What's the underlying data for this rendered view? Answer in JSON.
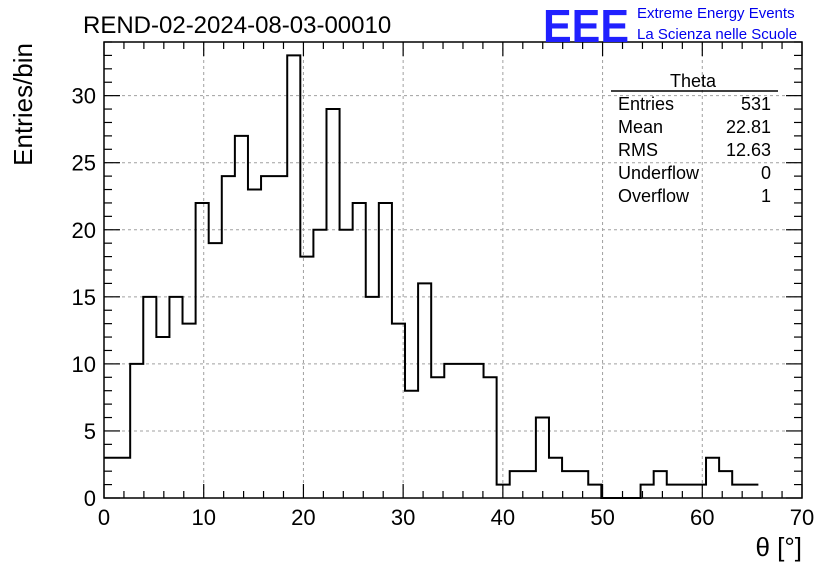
{
  "chart_data": {
    "type": "bar",
    "title": "REND-02-2024-08-03-00010",
    "xlabel": "θ [°]",
    "ylabel": "Entries/bin",
    "xlim": [
      0,
      70
    ],
    "ylim": [
      0,
      34
    ],
    "bin_width": 1.3125,
    "x_ticks": [
      0,
      10,
      20,
      30,
      40,
      50,
      60,
      70
    ],
    "y_ticks": [
      0,
      5,
      10,
      15,
      20,
      25,
      30
    ],
    "grid": true,
    "values": [
      3,
      3,
      10,
      15,
      12,
      15,
      13,
      22,
      19,
      24,
      27,
      23,
      24,
      24,
      33,
      18,
      20,
      29,
      20,
      22,
      15,
      22,
      13,
      8,
      16,
      9,
      10,
      10,
      10,
      9,
      1,
      2,
      2,
      6,
      3,
      2,
      2,
      1,
      0,
      0,
      0,
      1,
      2,
      1,
      1,
      1,
      3,
      2,
      1,
      1
    ],
    "stats": {
      "name": "Theta",
      "rows": [
        {
          "label": "Entries",
          "value": "531"
        },
        {
          "label": "Mean",
          "value": "22.81"
        },
        {
          "label": "RMS",
          "value": "12.63"
        },
        {
          "label": "Underflow",
          "value": "0"
        },
        {
          "label": "Overflow",
          "value": "1"
        }
      ]
    }
  },
  "logo": {
    "mark": "EEE",
    "line1": "Extreme Energy Events",
    "line2": "La Scienza nelle Scuole",
    "color": "#2020ff"
  }
}
